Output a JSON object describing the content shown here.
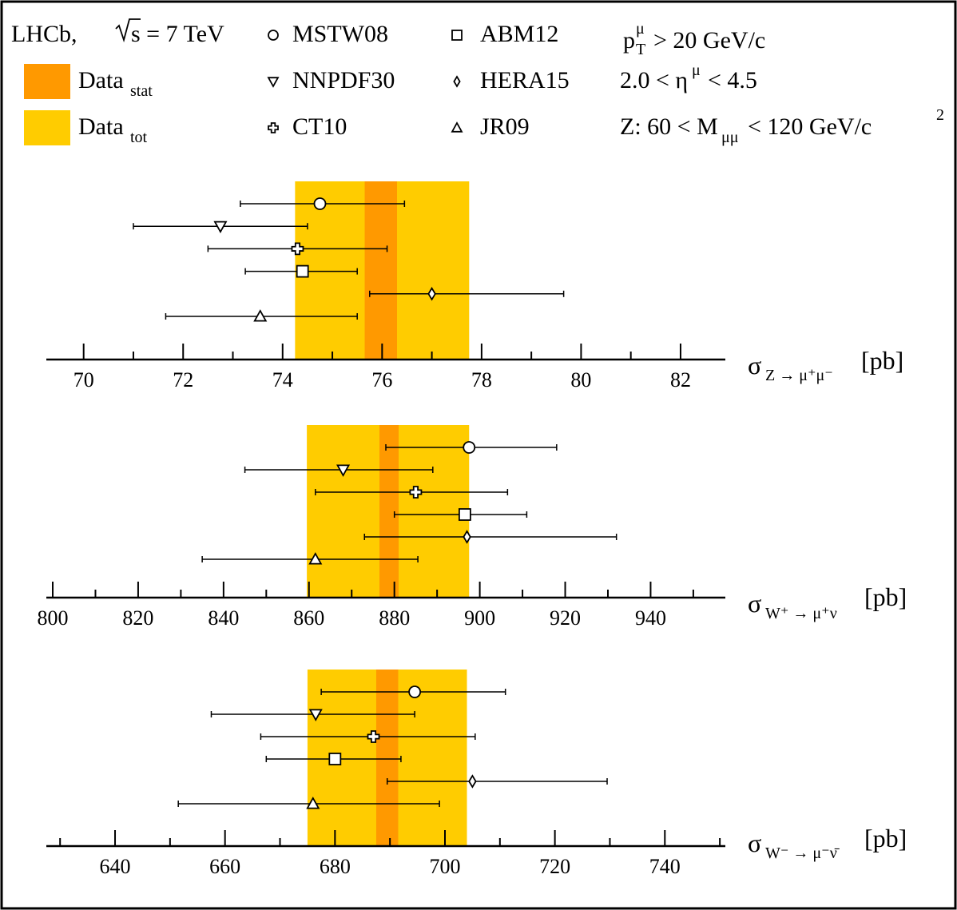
{
  "chart_data": {
    "type": "error-bar comparison",
    "legend": {
      "experiment": "LHCb,",
      "sqrt_s": "s = 7 TeV",
      "data_stat": {
        "label": "Data",
        "sub": "stat",
        "color": "#ff9900"
      },
      "data_tot": {
        "label": "Data",
        "sub": "tot",
        "color": "#ffcc00"
      },
      "models": [
        {
          "name": "MSTW08",
          "marker": "circle"
        },
        {
          "name": "NNPDF30",
          "marker": "triangle-down"
        },
        {
          "name": "CT10",
          "marker": "cross"
        },
        {
          "name": "ABM12",
          "marker": "square"
        },
        {
          "name": "HERA15",
          "marker": "diamond"
        },
        {
          "name": "JR09",
          "marker": "triangle-up"
        }
      ],
      "cut_pt": "p",
      "cut_pt_sup": "μ",
      "cut_pt_sub": "T",
      "cut_pt_value": "> 20 GeV/c",
      "cut_eta": "2.0 < η",
      "cut_eta_sup": "μ",
      "cut_eta_value": "< 4.5",
      "cut_mass": "Z: 60 < M",
      "cut_mass_sub": "μμ",
      "cut_mass_value": "< 120 GeV/c",
      "cut_mass_sup": "2"
    },
    "panels": [
      {
        "xlabel": "σ",
        "xlabel_sub": "Z → μ⁺μ⁻",
        "xlabel_unit": "[pb]",
        "xlim": [
          69.25,
          82.9
        ],
        "major_ticks": [
          70,
          72,
          74,
          76,
          78,
          80,
          82
        ],
        "minor_step": 1,
        "data_stat": [
          75.65,
          76.3
        ],
        "data_tot": [
          74.25,
          77.75
        ],
        "points": [
          {
            "model": "MSTW08",
            "value": 74.75,
            "low": 73.15,
            "high": 76.45
          },
          {
            "model": "NNPDF30",
            "value": 72.75,
            "low": 71.0,
            "high": 74.5
          },
          {
            "model": "CT10",
            "value": 74.3,
            "low": 72.5,
            "high": 76.1
          },
          {
            "model": "ABM12",
            "value": 74.4,
            "low": 73.25,
            "high": 75.5
          },
          {
            "model": "HERA15",
            "value": 77.0,
            "low": 75.75,
            "high": 79.65
          },
          {
            "model": "JR09",
            "value": 73.55,
            "low": 71.65,
            "high": 75.5
          }
        ]
      },
      {
        "xlabel": "σ",
        "xlabel_sub": "W⁺ → μ⁺ν",
        "xlabel_unit": "[pb]",
        "xlim": [
          798.5,
          957.5
        ],
        "major_ticks": [
          800,
          820,
          840,
          860,
          880,
          900,
          920,
          940
        ],
        "minor_step": 10,
        "data_stat": [
          876.5,
          881.0
        ],
        "data_tot": [
          859.5,
          897.5
        ],
        "points": [
          {
            "model": "MSTW08",
            "value": 897.5,
            "low": 878.0,
            "high": 918.0
          },
          {
            "model": "NNPDF30",
            "value": 868.0,
            "low": 845.0,
            "high": 889.0
          },
          {
            "model": "CT10",
            "value": 885.0,
            "low": 861.5,
            "high": 906.5
          },
          {
            "model": "ABM12",
            "value": 896.5,
            "low": 880.0,
            "high": 911.0
          },
          {
            "model": "HERA15",
            "value": 897.0,
            "low": 873.0,
            "high": 932.0
          },
          {
            "model": "JR09",
            "value": 861.5,
            "low": 835.0,
            "high": 885.5
          }
        ]
      },
      {
        "xlabel": "σ",
        "xlabel_sub": "W⁻ → μ⁻ν̄",
        "xlabel_unit": "[pb]",
        "xlim": [
          627.5,
          751.0
        ],
        "major_ticks": [
          640,
          660,
          680,
          700,
          720,
          740
        ],
        "minor_step": 10,
        "data_stat": [
          687.5,
          691.5
        ],
        "data_tot": [
          675.0,
          704.0
        ],
        "points": [
          {
            "model": "MSTW08",
            "value": 694.5,
            "low": 677.5,
            "high": 711.0
          },
          {
            "model": "NNPDF30",
            "value": 676.5,
            "low": 657.5,
            "high": 694.5
          },
          {
            "model": "CT10",
            "value": 687.0,
            "low": 666.5,
            "high": 705.5
          },
          {
            "model": "ABM12",
            "value": 680.0,
            "low": 667.5,
            "high": 692.0
          },
          {
            "model": "HERA15",
            "value": 705.0,
            "low": 689.5,
            "high": 729.5
          },
          {
            "model": "JR09",
            "value": 676.0,
            "low": 651.5,
            "high": 699.0
          }
        ]
      }
    ]
  }
}
